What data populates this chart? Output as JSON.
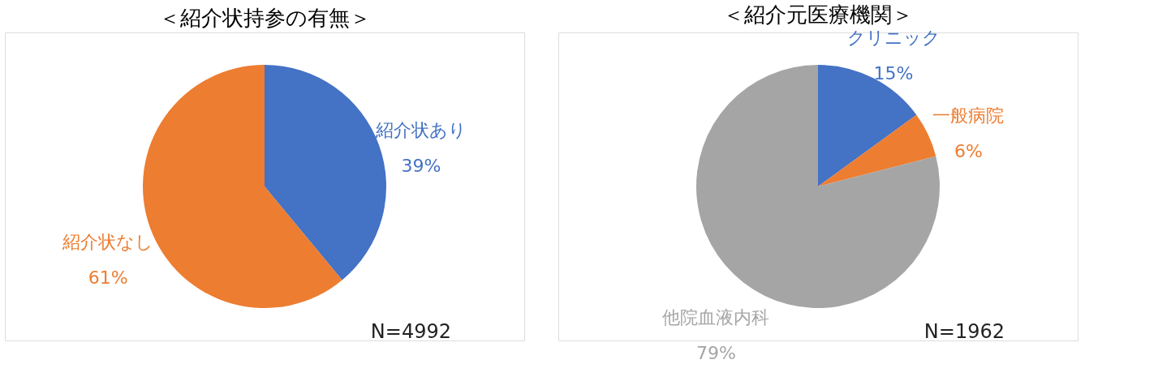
{
  "chart_data": [
    {
      "type": "pie",
      "title": "＜紹介状持参の有無＞",
      "categories": [
        "紹介状あり",
        "紹介状なし"
      ],
      "values": [
        39,
        61
      ],
      "colors": [
        "#4472c4",
        "#ed7d31"
      ],
      "value_labels": [
        "39%",
        "61%"
      ],
      "legend": false,
      "annotations": [
        "N=4992"
      ]
    },
    {
      "type": "pie",
      "title": "＜紹介元医療機関＞",
      "categories": [
        "クリニック",
        "一般病院",
        "他院血液内科"
      ],
      "values": [
        15,
        6,
        79
      ],
      "colors": [
        "#4472c4",
        "#ed7d31",
        "#a5a5a5"
      ],
      "value_labels": [
        "15%",
        "6%",
        "79%"
      ],
      "legend": false,
      "annotations": [
        "N=1962"
      ]
    }
  ]
}
